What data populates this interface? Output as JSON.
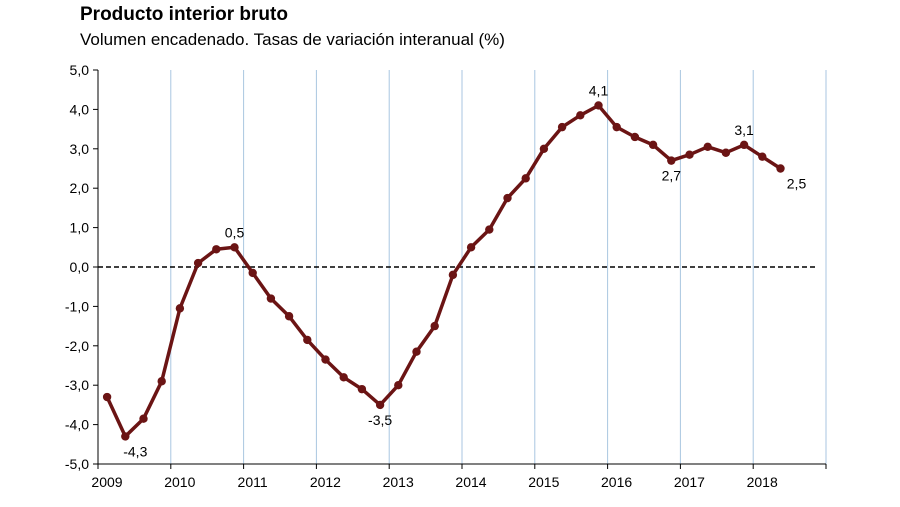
{
  "chart_data": {
    "type": "line",
    "title": "Producto interior bruto",
    "subtitle": "Volumen encadenado. Tasas de variación interanual (%)",
    "xlabel": "",
    "ylabel": "",
    "ylim": [
      -5.0,
      5.0
    ],
    "yticks": [
      "5,0",
      "4,0",
      "3,0",
      "2,0",
      "1,0",
      "0,0",
      "-1,0",
      "-2,0",
      "-3,0",
      "-4,0",
      "-5,0"
    ],
    "ytick_values": [
      5,
      4,
      3,
      2,
      1,
      0,
      -1,
      -2,
      -3,
      -4,
      -5
    ],
    "xticks": [
      "2009",
      "2010",
      "2011",
      "2012",
      "2013",
      "2014",
      "2015",
      "2016",
      "2017",
      "2018"
    ],
    "grid": "vertical",
    "reference_line": 0,
    "line_color": "#6b1414",
    "grid_color": "#a9c6e0",
    "series": [
      {
        "quarters": [
          "2009T1",
          "2009T2",
          "2009T3",
          "2009T4",
          "2010T1",
          "2010T2",
          "2010T3",
          "2010T4",
          "2011T1",
          "2011T2",
          "2011T3",
          "2011T4",
          "2012T1",
          "2012T2",
          "2012T3",
          "2012T4",
          "2013T1",
          "2013T2",
          "2013T3",
          "2013T4",
          "2014T1",
          "2014T2",
          "2014T3",
          "2014T4",
          "2015T1",
          "2015T2",
          "2015T3",
          "2015T4",
          "2016T1",
          "2016T2",
          "2016T3",
          "2016T4",
          "2017T1",
          "2017T2",
          "2017T3",
          "2017T4",
          "2018T1",
          "2018T2"
        ],
        "values": [
          -3.3,
          -4.3,
          -3.85,
          -2.9,
          -1.05,
          0.1,
          0.45,
          0.5,
          -0.15,
          -0.8,
          -1.25,
          -1.85,
          -2.35,
          -2.8,
          -3.1,
          -3.5,
          -3.0,
          -2.15,
          -1.5,
          -0.2,
          0.5,
          0.95,
          1.75,
          2.25,
          3.0,
          3.55,
          3.85,
          4.1,
          3.55,
          3.3,
          3.1,
          2.7,
          2.85,
          3.05,
          2.9,
          3.1,
          2.8,
          2.5
        ]
      }
    ],
    "annotations": [
      {
        "text": "-4,3",
        "index": 1
      },
      {
        "text": "0,5",
        "index": 7
      },
      {
        "text": "-3,5",
        "index": 15
      },
      {
        "text": "4,1",
        "index": 27
      },
      {
        "text": "2,7",
        "index": 31
      },
      {
        "text": "3,1",
        "index": 35
      },
      {
        "text": "2,5",
        "index": 37
      }
    ]
  }
}
